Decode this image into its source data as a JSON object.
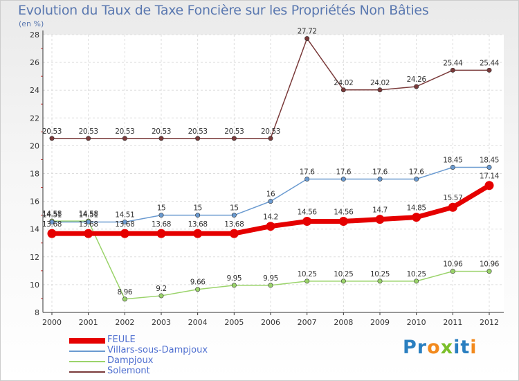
{
  "title": "Evolution du Taux de Taxe Foncière sur les Propriétés Non Bâties",
  "unit_label": "(en %)",
  "logo": {
    "letters": [
      {
        "ch": "P",
        "color": "#2a7fc0"
      },
      {
        "ch": "r",
        "color": "#2a7fc0"
      },
      {
        "ch": "o",
        "color": "#f28a1e"
      },
      {
        "ch": "x",
        "color": "#7bbf2a"
      },
      {
        "ch": "i",
        "color": "#2a7fc0"
      },
      {
        "ch": "t",
        "color": "#2a7fc0"
      },
      {
        "ch": "i",
        "color": "#f28a1e"
      }
    ]
  },
  "chart_data": {
    "type": "line",
    "title": "Evolution du Taux de Taxe Foncière sur les Propriétés Non Bâties",
    "ylabel": "(en %)",
    "xlabel": "",
    "x": [
      "2000",
      "2001",
      "2002",
      "2003",
      "2004",
      "2005",
      "2006",
      "2007",
      "2008",
      "2009",
      "2010",
      "2011",
      "2012"
    ],
    "ylim": [
      8,
      28
    ],
    "yticks": [
      8,
      10,
      12,
      14,
      16,
      18,
      20,
      22,
      24,
      26,
      28
    ],
    "grid": true,
    "legend_position": "bottom-left",
    "series": [
      {
        "name": "FEULE",
        "color": "#e50000",
        "values": [
          13.68,
          13.68,
          13.68,
          13.68,
          13.68,
          13.68,
          14.2,
          14.56,
          14.56,
          14.7,
          14.85,
          15.57,
          17.14
        ],
        "labels": [
          "13.68",
          "13.68",
          "13.68",
          "13.68",
          "13.68",
          "13.68",
          "14.2",
          "14.56",
          "14.56",
          "14.7",
          "14.85",
          "15.57",
          "17.14"
        ]
      },
      {
        "name": "Villars-sous-Dampjoux",
        "color": "#6a9ad0",
        "values": [
          14.51,
          14.51,
          14.51,
          15,
          15,
          15,
          16,
          17.6,
          17.6,
          17.6,
          17.6,
          18.45,
          18.45
        ],
        "labels": [
          "14.51",
          "14.51",
          "14.51",
          "15",
          "15",
          "15",
          "16",
          "17.6",
          "17.6",
          "17.6",
          "17.6",
          "18.45",
          "18.45"
        ]
      },
      {
        "name": "Dampjoux",
        "color": "#9ad36a",
        "values": [
          14.58,
          14.58,
          8.96,
          9.2,
          9.66,
          9.95,
          9.95,
          10.25,
          10.25,
          10.25,
          10.25,
          10.96,
          10.96
        ],
        "labels": [
          "14.58",
          "14.58",
          "8.96",
          "9.2",
          "9.66",
          "9.95",
          "9.95",
          "10.25",
          "10.25",
          "10.25",
          "10.25",
          "10.96",
          "10.96"
        ]
      },
      {
        "name": "Solemont",
        "color": "#7a3a3a",
        "values": [
          20.53,
          20.53,
          20.53,
          20.53,
          20.53,
          20.53,
          20.53,
          27.72,
          24.02,
          24.02,
          24.26,
          25.44,
          25.44
        ],
        "labels": [
          "20.53",
          "20.53",
          "20.53",
          "20.53",
          "20.53",
          "20.53",
          "20.53",
          "27.72",
          "24.02",
          "24.02",
          "24.26",
          "25.44",
          "25.44"
        ]
      }
    ]
  }
}
